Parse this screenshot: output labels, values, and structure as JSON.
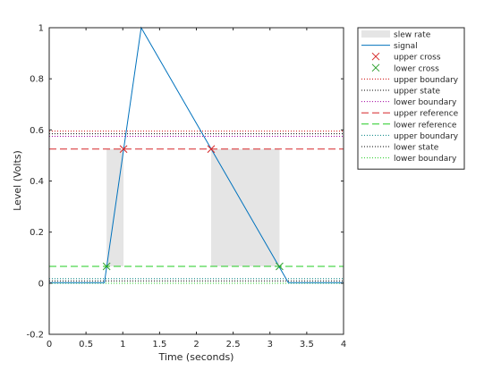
{
  "chart_data": {
    "type": "line",
    "xlabel": "Time (seconds)",
    "ylabel": "Level (Volts)",
    "xlim": [
      0,
      4
    ],
    "ylim": [
      -0.2,
      1
    ],
    "xticks": [
      0,
      0.5,
      1,
      1.5,
      2,
      2.5,
      3,
      3.5,
      4
    ],
    "xtick_labels": [
      "0",
      "0.5",
      "1",
      "1.5",
      "2",
      "2.5",
      "3",
      "3.5",
      "4"
    ],
    "yticks": [
      -0.2,
      0,
      0.2,
      0.4,
      0.6,
      0.8,
      1
    ],
    "ytick_labels": [
      "-0.2",
      "0",
      "0.2",
      "0.4",
      "0.6",
      "0.8",
      "1"
    ],
    "grid": false,
    "legend_position": "outside-top-right",
    "slew_rate_regions": [
      {
        "x0": 0.78,
        "x1": 1.01,
        "y0": 0.066,
        "y1": 0.525
      },
      {
        "x0": 2.2,
        "x1": 3.13,
        "y0": 0.066,
        "y1": 0.525
      }
    ],
    "signal": {
      "name": "signal",
      "color": "#0072bd",
      "x": [
        0,
        0.75,
        1.25,
        3.25,
        4
      ],
      "y": [
        0.002,
        0.002,
        1.0,
        0.002,
        0.002
      ]
    },
    "upper_cross": {
      "name": "upper cross",
      "color": "#d62728",
      "x": [
        1.01,
        2.2
      ],
      "y": [
        0.525,
        0.525
      ]
    },
    "lower_cross": {
      "name": "lower cross",
      "color": "#2ca02c",
      "x": [
        0.78,
        3.13
      ],
      "y": [
        0.066,
        0.066
      ]
    },
    "hlines": [
      {
        "name": "upper boundary",
        "y": 0.595,
        "color": "#cc0000",
        "style": "dotted"
      },
      {
        "name": "upper state",
        "y": 0.585,
        "color": "#000000",
        "style": "dotted"
      },
      {
        "name": "lower boundary",
        "y": 0.575,
        "color": "#a000a0",
        "style": "dotted"
      },
      {
        "name": "upper reference",
        "y": 0.525,
        "color": "#d62728",
        "style": "dashed"
      },
      {
        "name": "lower reference",
        "y": 0.066,
        "color": "#22cc22",
        "style": "dashed"
      },
      {
        "name": "upper boundary",
        "y": 0.018,
        "color": "#008080",
        "style": "dotted"
      },
      {
        "name": "lower state",
        "y": 0.009,
        "color": "#000000",
        "style": "dotted"
      },
      {
        "name": "lower boundary",
        "y": 0.0,
        "color": "#22cc22",
        "style": "dotted"
      }
    ],
    "legend": [
      {
        "label": "slew rate",
        "kind": "patch",
        "color": "#e5e5e5"
      },
      {
        "label": "signal",
        "kind": "line",
        "color": "#0072bd",
        "style": "solid"
      },
      {
        "label": "upper cross",
        "kind": "marker",
        "color": "#d62728"
      },
      {
        "label": "lower cross",
        "kind": "marker",
        "color": "#2ca02c"
      },
      {
        "label": "upper boundary",
        "kind": "line",
        "color": "#cc0000",
        "style": "dotted"
      },
      {
        "label": "upper state",
        "kind": "line",
        "color": "#000000",
        "style": "dotted"
      },
      {
        "label": "lower boundary",
        "kind": "line",
        "color": "#a000a0",
        "style": "dotted"
      },
      {
        "label": "upper reference",
        "kind": "line",
        "color": "#d62728",
        "style": "dashed"
      },
      {
        "label": "lower reference",
        "kind": "line",
        "color": "#22cc22",
        "style": "dashed"
      },
      {
        "label": "upper boundary",
        "kind": "line",
        "color": "#008080",
        "style": "dotted"
      },
      {
        "label": "lower state",
        "kind": "line",
        "color": "#000000",
        "style": "dotted"
      },
      {
        "label": "lower boundary",
        "kind": "line",
        "color": "#22cc22",
        "style": "dotted"
      }
    ]
  }
}
